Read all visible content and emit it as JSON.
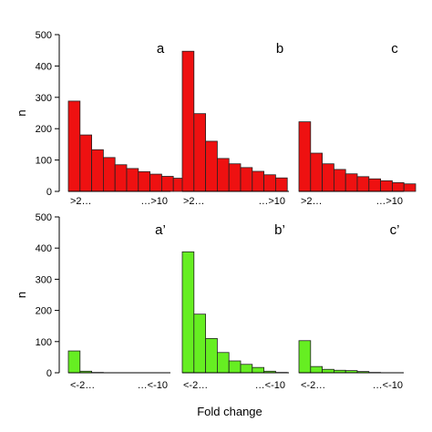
{
  "chart_data": [
    {
      "type": "bar",
      "row": "top",
      "ylabel": "n",
      "ylim": [
        0,
        500
      ],
      "yticks": [
        0,
        100,
        200,
        300,
        400,
        500
      ],
      "color": "#ee1111",
      "panels": [
        {
          "label": "a",
          "x_first": ">2…",
          "x_last": "…>10",
          "values": [
            288,
            180,
            133,
            108,
            85,
            73,
            63,
            55,
            48,
            42
          ]
        },
        {
          "label": "b",
          "x_first": ">2…",
          "x_last": "…>10",
          "values": [
            447,
            248,
            160,
            105,
            88,
            76,
            64,
            53,
            43
          ]
        },
        {
          "label": "c",
          "x_first": ">2…",
          "x_last": "…>10",
          "values": [
            222,
            122,
            88,
            70,
            56,
            47,
            40,
            34,
            28,
            24
          ]
        }
      ]
    },
    {
      "type": "bar",
      "row": "bottom",
      "ylabel": "n",
      "ylim": [
        0,
        500
      ],
      "yticks": [
        0,
        100,
        200,
        300,
        400,
        500
      ],
      "color": "#66ee22",
      "panels": [
        {
          "label": "a’",
          "x_first": "<-2…",
          "x_last": "…<-10",
          "values": [
            70,
            5,
            1,
            0,
            0,
            0,
            0,
            0,
            0,
            0
          ]
        },
        {
          "label": "b’",
          "x_first": "<-2…",
          "x_last": "…<-10",
          "values": [
            388,
            188,
            110,
            65,
            38,
            27,
            17,
            5,
            1
          ]
        },
        {
          "label": "c’",
          "x_first": "<-2…",
          "x_last": "…<-10",
          "values": [
            103,
            20,
            11,
            8,
            7,
            4,
            1,
            0,
            0,
            0
          ]
        }
      ]
    }
  ],
  "xlabel": "Fold change"
}
